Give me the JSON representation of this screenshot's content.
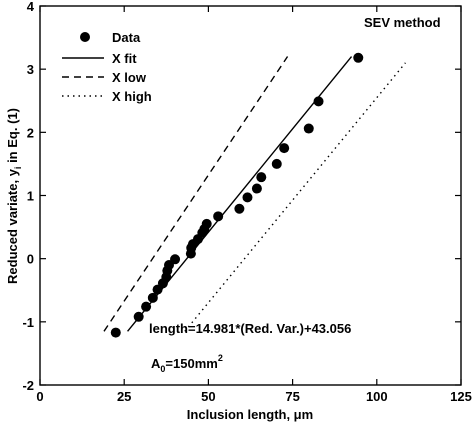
{
  "chart_data": {
    "type": "scatter",
    "title": "SEV method",
    "xlabel": "Inclusion length, μm",
    "ylabel_main": "Reduced variate, y",
    "ylabel_sub": "i",
    "ylabel_tail": " in Eq. (1)",
    "xlim": [
      0,
      125
    ],
    "ylim": [
      -2,
      4
    ],
    "xticks": [
      0,
      25,
      50,
      75,
      100,
      125
    ],
    "yticks": [
      -2,
      -1,
      0,
      1,
      2,
      3,
      4
    ],
    "xtick_labels": [
      "0",
      "25",
      "50",
      "75",
      "100",
      "125"
    ],
    "ytick_labels": [
      "-2",
      "-1",
      "0",
      "1",
      "2",
      "3",
      "4"
    ],
    "grid": false,
    "legend_position": "top-left",
    "series": [
      {
        "name": "Data",
        "kind": "points",
        "x": [
          22.5,
          29.3,
          31.5,
          33.5,
          34.9,
          36.5,
          37.5,
          37.8,
          38.3,
          40.1,
          44.8,
          44.9,
          45.4,
          46.9,
          48.2,
          48.8,
          49.5,
          52.9,
          59.2,
          61.6,
          64.4,
          65.7,
          70.3,
          72.5,
          79.8,
          82.7,
          94.5
        ],
        "y": [
          -1.17,
          -0.92,
          -0.76,
          -0.62,
          -0.49,
          -0.39,
          -0.29,
          -0.19,
          -0.1,
          -0.01,
          0.08,
          0.17,
          0.23,
          0.31,
          0.41,
          0.47,
          0.55,
          0.67,
          0.79,
          0.97,
          1.11,
          1.29,
          1.5,
          1.75,
          2.06,
          2.49,
          3.18
        ]
      },
      {
        "name": "X fit",
        "kind": "line",
        "style": "solid",
        "x": [
          26,
          92.5
        ],
        "y": [
          -1.15,
          3.2
        ]
      },
      {
        "name": "X low",
        "kind": "line",
        "style": "dashed",
        "x": [
          19,
          73.5
        ],
        "y": [
          -1.15,
          3.2
        ]
      },
      {
        "name": "X high",
        "kind": "line",
        "style": "dotted",
        "x": [
          43,
          108.5
        ],
        "y": [
          -1.15,
          3.1
        ]
      }
    ],
    "annotations": {
      "equation": "length=14.981*(Red. Var.)+43.056",
      "area_prefix": "A",
      "area_sub": "0",
      "area_value": "=150mm",
      "area_sup": "2"
    }
  }
}
